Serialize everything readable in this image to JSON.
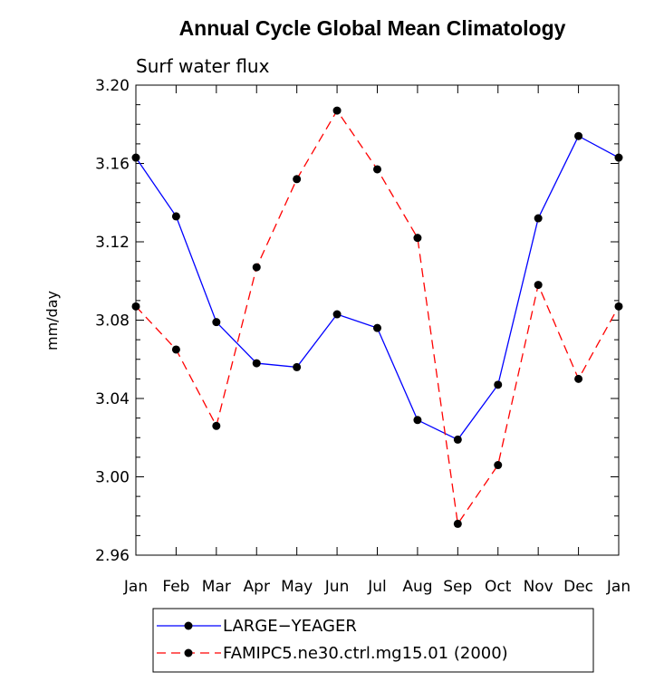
{
  "chart_data": {
    "type": "line",
    "title": "Annual Cycle Global Mean Climatology",
    "subtitle": "Surf water flux",
    "xlabel": "",
    "ylabel": "mm/day",
    "categories": [
      "Jan",
      "Feb",
      "Mar",
      "Apr",
      "May",
      "Jun",
      "Jul",
      "Aug",
      "Sep",
      "Oct",
      "Nov",
      "Dec",
      "Jan"
    ],
    "ylim": [
      2.96,
      3.2
    ],
    "yticks": [
      "3.20",
      "3.16",
      "3.12",
      "3.08",
      "3.04",
      "3.00",
      "2.96"
    ],
    "ytick_values": [
      3.2,
      3.16,
      3.12,
      3.08,
      3.04,
      3.0,
      2.96
    ],
    "legend_position": "bottom",
    "series": [
      {
        "name": "LARGE−YEAGER",
        "color": "#0000ff",
        "dash": "solid",
        "values": [
          3.163,
          3.133,
          3.079,
          3.058,
          3.056,
          3.083,
          3.076,
          3.029,
          3.019,
          3.047,
          3.132,
          3.174,
          3.163
        ]
      },
      {
        "name": "FAMIPC5.ne30.ctrl.mg15.01 (2000)",
        "color": "#ff0000",
        "dash": "dashed",
        "values": [
          3.087,
          3.065,
          3.026,
          3.107,
          3.152,
          3.187,
          3.157,
          3.122,
          2.976,
          3.006,
          3.098,
          3.05,
          3.087
        ]
      }
    ]
  }
}
